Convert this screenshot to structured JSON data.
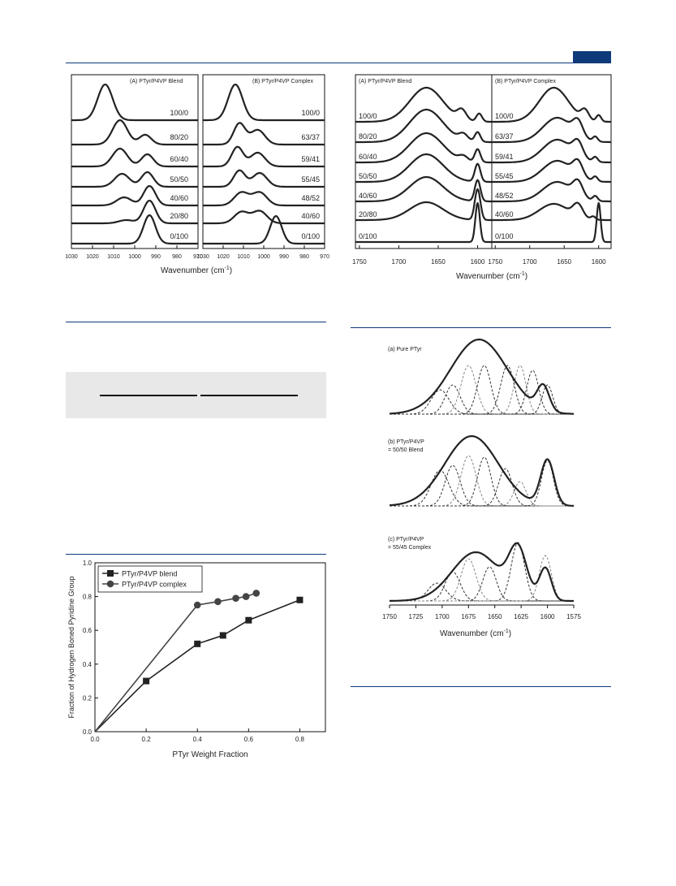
{
  "header": {
    "accent_color": "#0e3a7a"
  },
  "figure_ir_ring": {
    "panel_a_title": "(A) PTyr/P4VP Blend",
    "panel_b_title": "(B) PTyr/P4VP Complex",
    "panel_a_labels": [
      "100/0",
      "80/20",
      "60/40",
      "50/50",
      "40/60",
      "20/80",
      "0/100"
    ],
    "panel_b_labels": [
      "100/0",
      "63/37",
      "59/41",
      "55/45",
      "48/52",
      "40/60",
      "0/100"
    ],
    "x_ticks": [
      "1030",
      "1020",
      "1010",
      "1000",
      "990",
      "980",
      "970"
    ],
    "x_label_prefix": "Wavenumber (cm",
    "x_label_sup": "-1",
    "x_label_suffix": ")"
  },
  "figure_ir_carbonyl": {
    "panel_a_title": "(A) PTyr/P4VP Blend",
    "panel_b_title": "(B) PTyr/P4VP Complex",
    "panel_a_labels": [
      "100/0",
      "80/20",
      "60/40",
      "50/50",
      "40/60",
      "20/80",
      "0/100"
    ],
    "panel_b_labels": [
      "100/0",
      "63/37",
      "59/41",
      "55/45",
      "48/52",
      "40/60",
      "0/100"
    ],
    "x_ticks": [
      "1750",
      "1700",
      "1650",
      "1600"
    ],
    "x_label_prefix": "Wavenumber (cm",
    "x_label_sup": "-1",
    "x_label_suffix": ")"
  },
  "figure_curve_fit": {
    "panel_a": "(a) Pure PTyr",
    "panel_b_line1": "(b) PTyr/P4VP",
    "panel_b_line2": "= 50/50 Blend",
    "panel_c_line1": "(c) PTyr/P4VP",
    "panel_c_line2": "= 55/45 Complex",
    "x_ticks": [
      "1750",
      "1725",
      "1700",
      "1675",
      "1650",
      "1625",
      "1600",
      "1575"
    ],
    "x_label_prefix": "Wavenumber (cm",
    "x_label_sup": "-1",
    "x_label_suffix": ")"
  },
  "chart_data": {
    "type": "line",
    "title": "",
    "xlabel": "PTyr Weight Fraction",
    "ylabel": "Fraction of Hydrogen Boned Pyridine Group",
    "xlim": [
      0.0,
      0.9
    ],
    "ylim": [
      0.0,
      1.0
    ],
    "x_ticks": [
      "0.0",
      "0.2",
      "0.4",
      "0.6",
      "0.8"
    ],
    "y_ticks": [
      "0.0",
      "0.2",
      "0.4",
      "0.6",
      "0.8",
      "1.0"
    ],
    "legend_position": "top-left",
    "series": [
      {
        "name": "PTyr/P4VP blend",
        "marker": "square",
        "color": "#222222",
        "x": [
          0.0,
          0.2,
          0.4,
          0.5,
          0.6,
          0.8
        ],
        "y": [
          0.0,
          0.3,
          0.52,
          0.57,
          0.66,
          0.78
        ]
      },
      {
        "name": "PTyr/P4VP complex",
        "marker": "circle",
        "color": "#444444",
        "x": [
          0.0,
          0.4,
          0.48,
          0.55,
          0.59,
          0.63
        ],
        "y": [
          0.0,
          0.75,
          0.77,
          0.79,
          0.8,
          0.82
        ]
      }
    ]
  }
}
